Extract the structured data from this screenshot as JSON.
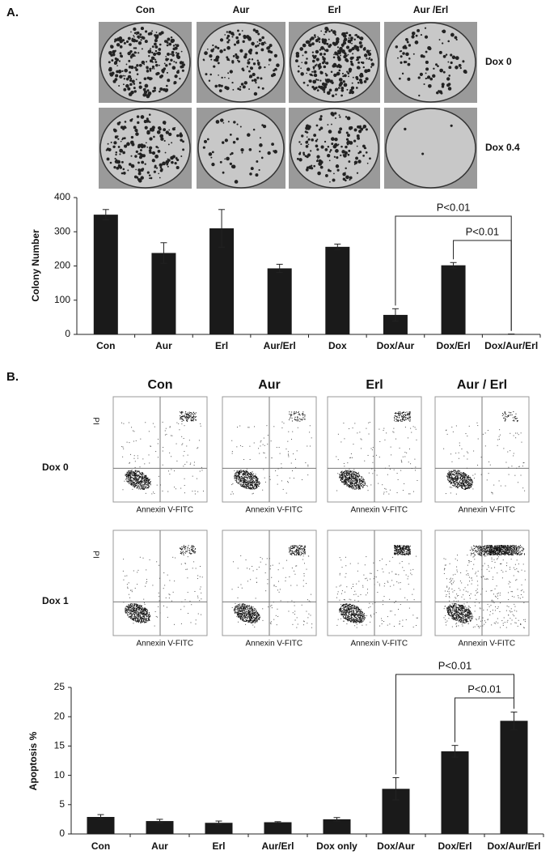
{
  "panel_a": {
    "label": "A.",
    "columns": [
      "Con",
      "Aur",
      "Erl",
      "Aur /Erl"
    ],
    "rows": [
      "Dox 0",
      "Dox 0.4"
    ]
  },
  "panel_b": {
    "label": "B.",
    "columns": [
      "Con",
      "Aur",
      "Erl",
      "Aur / Erl"
    ],
    "rows": [
      "Dox 0",
      "Dox 1"
    ],
    "x_axis_label": "Annexin V-FITC",
    "y_axis_label": "PI"
  },
  "chart_data": [
    {
      "type": "bar",
      "y_label": "Colony Number",
      "color": "#1a1a1a",
      "categories": [
        "Con",
        "Aur",
        "Erl",
        "Aur/Erl",
        "Dox",
        "Dox/Aur",
        "Dox/Erl",
        "Dox/Aur/Erl"
      ],
      "values": [
        350,
        238,
        310,
        193,
        256,
        57,
        202,
        1
      ],
      "errors": [
        15,
        30,
        55,
        12,
        8,
        18,
        8,
        0
      ],
      "ylim": [
        0,
        400
      ],
      "yticks": [
        0,
        100,
        200,
        300,
        400
      ],
      "grid": false,
      "annotations": [
        {
          "text": "P<0.01",
          "between": [
            "Dox/Aur",
            "Dox/Aur/Erl"
          ]
        },
        {
          "text": "P<0.01",
          "between": [
            "Dox/Erl",
            "Dox/Aur/Erl"
          ]
        }
      ]
    },
    {
      "type": "bar",
      "y_label": "Apoptosis %",
      "color": "#1a1a1a",
      "categories": [
        "Con",
        "Aur",
        "Erl",
        "Aur/Erl",
        "Dox only",
        "Dox/Aur",
        "Dox/Erl",
        "Dox/Aur/Erl"
      ],
      "values": [
        2.9,
        2.2,
        1.9,
        2.0,
        2.5,
        7.7,
        14.1,
        19.3
      ],
      "errors": [
        0.4,
        0.3,
        0.3,
        0.1,
        0.3,
        1.9,
        1.0,
        1.5
      ],
      "ylim": [
        0,
        25
      ],
      "yticks": [
        0,
        5,
        10,
        15,
        20,
        25
      ],
      "grid": false,
      "annotations": [
        {
          "text": "P<0.01",
          "between": [
            "Dox/Aur",
            "Dox/Aur/Erl"
          ]
        },
        {
          "text": "P<0.01",
          "between": [
            "Dox/Erl",
            "Dox/Aur/Erl"
          ]
        }
      ]
    }
  ]
}
